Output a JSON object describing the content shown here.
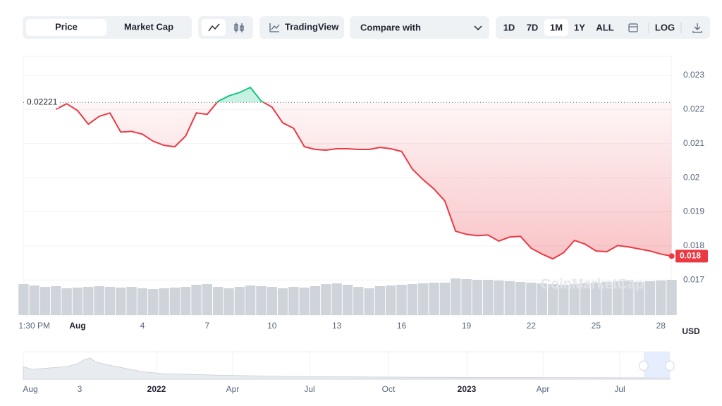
{
  "toolbar": {
    "tabs": [
      "Price",
      "Market Cap"
    ],
    "tradingview": "TradingView",
    "compare": "Compare with",
    "ranges": [
      "1D",
      "7D",
      "1M",
      "1Y",
      "ALL"
    ],
    "log": "LOG"
  },
  "chart_data": {
    "type": "line",
    "categories": [
      null,
      "1:30 PM",
      null,
      null,
      null,
      "Aug",
      null,
      null,
      null,
      null,
      null,
      "4",
      null,
      null,
      null,
      null,
      null,
      "7",
      null,
      null,
      null,
      null,
      null,
      "10",
      null,
      null,
      null,
      null,
      null,
      "13",
      null,
      null,
      null,
      null,
      null,
      "16",
      null,
      null,
      null,
      null,
      null,
      "19",
      null,
      null,
      null,
      null,
      null,
      "22",
      null,
      null,
      null,
      null,
      null,
      "25",
      null,
      null,
      null,
      null,
      null,
      "28",
      null
    ],
    "values": [
      null,
      null,
      null,
      0.02201,
      0.02217,
      0.02197,
      0.02157,
      0.0218,
      0.0219,
      0.02134,
      0.02136,
      0.02128,
      0.02107,
      0.02095,
      0.02091,
      0.02122,
      0.0219,
      0.02186,
      0.02224,
      0.0224,
      0.0225,
      0.02265,
      0.02225,
      0.02207,
      0.02161,
      0.02145,
      0.02091,
      0.02083,
      0.02081,
      0.02085,
      0.02085,
      0.02083,
      0.02083,
      0.02089,
      0.02085,
      0.02077,
      0.02025,
      0.01994,
      0.01967,
      0.01932,
      0.01843,
      0.01834,
      0.0183,
      0.01832,
      0.01814,
      0.01826,
      0.01828,
      0.01793,
      0.01776,
      0.01762,
      0.0178,
      0.01816,
      0.01805,
      0.01785,
      0.01783,
      0.01801,
      0.01797,
      0.01791,
      0.01785,
      0.01776,
      0.0177
    ],
    "color": "#ea3943",
    "up_color": "#16c784",
    "reference": 0.02221,
    "last_price": 0.018,
    "ylim": [
      0.01597,
      0.02356
    ],
    "yticks": [
      0.017,
      0.018,
      0.019,
      0.02,
      0.021,
      0.022,
      0.023
    ],
    "grid": true,
    "currency": "USD",
    "watermark": "CoinMarketCap",
    "volume": {
      "color": "#cfd3da",
      "values": [
        44,
        42,
        40,
        41,
        38,
        39,
        40,
        41,
        40,
        39,
        40,
        38,
        37,
        38,
        39,
        40,
        43,
        44,
        40,
        38,
        40,
        42,
        41,
        40,
        38,
        40,
        39,
        41,
        44,
        45,
        43,
        40,
        38,
        41,
        42,
        43,
        44,
        45,
        46,
        46,
        52,
        51,
        50,
        50,
        49,
        48,
        47,
        46,
        45,
        44,
        43,
        44,
        45,
        46,
        47,
        48,
        49,
        47,
        48,
        49,
        50
      ]
    }
  },
  "navigator": {
    "labels": [
      "Aug",
      "3",
      "2022",
      "Apr",
      "Jul",
      "Oct",
      "2023",
      "Apr",
      "Jul"
    ]
  }
}
